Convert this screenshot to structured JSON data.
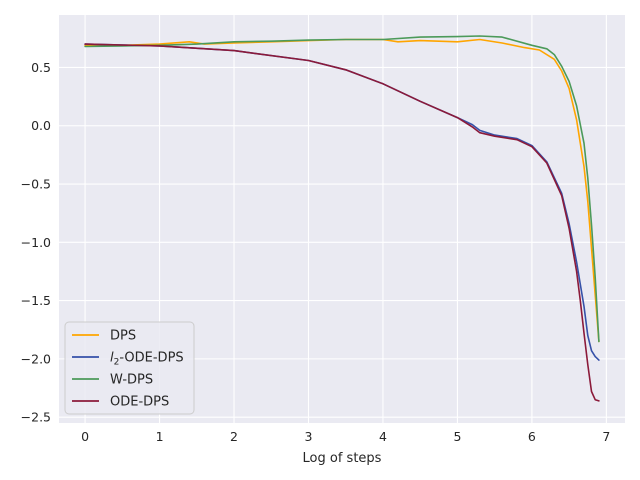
{
  "chart_data": {
    "type": "line",
    "title": "",
    "xlabel": "Log of steps",
    "ylabel": "",
    "xlim": [
      -0.35,
      7.25
    ],
    "ylim": [
      -2.55,
      0.95
    ],
    "xticks": [
      0,
      1,
      2,
      3,
      4,
      5,
      6,
      7
    ],
    "yticks": [
      -2.5,
      -2.0,
      -1.5,
      -1.0,
      -0.5,
      0.0,
      0.5
    ],
    "ytick_labels": [
      "−2.5",
      "−2.0",
      "−1.5",
      "−1.0",
      "−0.5",
      "0.0",
      "0.5"
    ],
    "grid": true,
    "legend": "lower-left",
    "series": [
      {
        "name": "DPS",
        "legend_html": "DPS",
        "color": "#ffa500",
        "x": [
          0,
          0.5,
          1.0,
          1.4,
          1.6,
          2.0,
          2.5,
          3.0,
          3.5,
          4.0,
          4.2,
          4.5,
          5.0,
          5.3,
          5.6,
          5.9,
          6.1,
          6.3,
          6.4,
          6.5,
          6.6,
          6.7,
          6.75,
          6.8,
          6.85,
          6.9
        ],
        "y": [
          0.69,
          0.69,
          0.7,
          0.72,
          0.7,
          0.71,
          0.72,
          0.73,
          0.74,
          0.74,
          0.72,
          0.73,
          0.72,
          0.74,
          0.71,
          0.67,
          0.65,
          0.57,
          0.47,
          0.32,
          0.05,
          -0.35,
          -0.65,
          -1.05,
          -1.45,
          -1.85
        ]
      },
      {
        "name": "l2-ODE-DPS",
        "legend_html": "l2-ODE-DPS",
        "color": "#3651a8",
        "x": [
          0,
          1,
          2,
          3,
          3.5,
          4.0,
          4.5,
          5.0,
          5.2,
          5.3,
          5.5,
          5.8,
          6.0,
          6.2,
          6.4,
          6.5,
          6.6,
          6.7,
          6.75,
          6.8,
          6.85,
          6.9
        ],
        "y": [
          0.7,
          0.685,
          0.645,
          0.56,
          0.48,
          0.36,
          0.21,
          0.07,
          0.01,
          -0.04,
          -0.08,
          -0.11,
          -0.17,
          -0.31,
          -0.58,
          -0.84,
          -1.17,
          -1.55,
          -1.8,
          -1.93,
          -1.98,
          -2.01
        ]
      },
      {
        "name": "W-DPS",
        "legend_html": "W-DPS",
        "color": "#4c9a5a",
        "x": [
          0,
          0.5,
          1.0,
          1.5,
          2.0,
          2.5,
          3.0,
          3.5,
          4.0,
          4.5,
          5.0,
          5.3,
          5.6,
          6.0,
          6.2,
          6.3,
          6.4,
          6.5,
          6.6,
          6.7,
          6.75,
          6.8,
          6.85,
          6.9
        ],
        "y": [
          0.68,
          0.685,
          0.69,
          0.7,
          0.72,
          0.725,
          0.735,
          0.74,
          0.74,
          0.76,
          0.765,
          0.77,
          0.76,
          0.69,
          0.66,
          0.61,
          0.51,
          0.38,
          0.17,
          -0.15,
          -0.45,
          -0.85,
          -1.3,
          -1.85
        ]
      },
      {
        "name": "ODE-DPS",
        "legend_html": "ODE-DPS",
        "color": "#8b1a3a",
        "x": [
          0,
          1,
          2,
          3,
          3.5,
          4.0,
          4.5,
          5.0,
          5.2,
          5.3,
          5.5,
          5.8,
          6.0,
          6.2,
          6.4,
          6.5,
          6.6,
          6.65,
          6.7,
          6.75,
          6.8,
          6.85,
          6.9
        ],
        "y": [
          0.7,
          0.685,
          0.645,
          0.56,
          0.48,
          0.36,
          0.21,
          0.07,
          -0.01,
          -0.06,
          -0.09,
          -0.12,
          -0.18,
          -0.32,
          -0.6,
          -0.88,
          -1.25,
          -1.5,
          -1.78,
          -2.05,
          -2.28,
          -2.35,
          -2.36
        ]
      }
    ]
  }
}
